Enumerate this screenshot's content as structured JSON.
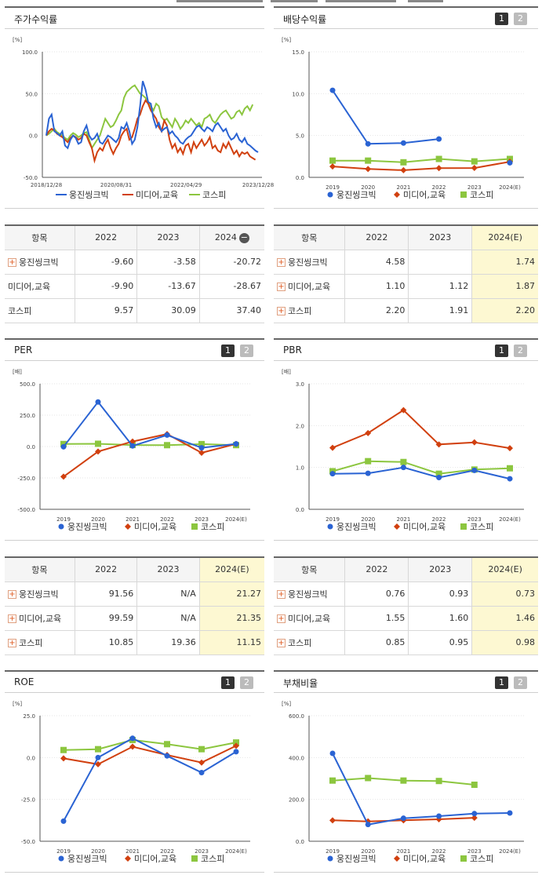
{
  "legend": [
    "웅진씽크빅",
    "미디어,교육",
    "코스피"
  ],
  "colors": {
    "s1": "#2a63d3",
    "s2": "#d1400f",
    "s3": "#8cc63f"
  },
  "panels": {
    "stock": {
      "title": "주가수익률",
      "unit": "[%]"
    },
    "dividend": {
      "title": "배당수익률",
      "unit": "[%]",
      "p1": "1",
      "p2": "2"
    },
    "per": {
      "title": "PER",
      "unit": "[배]",
      "p1": "1",
      "p2": "2"
    },
    "pbr": {
      "title": "PBR",
      "unit": "[배]",
      "p1": "1",
      "p2": "2"
    },
    "roe": {
      "title": "ROE",
      "unit": "[%]",
      "p1": "1",
      "p2": "2"
    },
    "debt": {
      "title": "부채비율",
      "unit": "[%]",
      "p1": "1",
      "p2": "2"
    }
  },
  "tables": {
    "stock": {
      "headers": [
        "항목",
        "2022",
        "2023",
        "2024"
      ],
      "minus": "−",
      "plus": "+",
      "rows": [
        [
          "웅진씽크빅",
          "-9.60",
          "-3.58",
          "-20.72"
        ],
        [
          "미디어,교육",
          "-9.90",
          "-13.67",
          "-28.67"
        ],
        [
          "코스피",
          "9.57",
          "30.09",
          "37.40"
        ]
      ]
    },
    "dividend": {
      "headers": [
        "항목",
        "2022",
        "2023",
        "2024(E)"
      ],
      "plus": "+",
      "rows": [
        [
          "웅진씽크빅",
          "4.58",
          "",
          "1.74"
        ],
        [
          "미디어,교육",
          "1.10",
          "1.12",
          "1.87"
        ],
        [
          "코스피",
          "2.20",
          "1.91",
          "2.20"
        ]
      ]
    },
    "per": {
      "headers": [
        "항목",
        "2022",
        "2023",
        "2024(E)"
      ],
      "plus": "+",
      "rows": [
        [
          "웅진씽크빅",
          "91.56",
          "N/A",
          "21.27"
        ],
        [
          "미디어,교육",
          "99.59",
          "N/A",
          "21.35"
        ],
        [
          "코스피",
          "10.85",
          "19.36",
          "11.15"
        ]
      ]
    },
    "pbr": {
      "headers": [
        "항목",
        "2022",
        "2023",
        "2024(E)"
      ],
      "plus": "+",
      "rows": [
        [
          "웅진씽크빅",
          "0.76",
          "0.93",
          "0.73"
        ],
        [
          "미디어,교육",
          "1.55",
          "1.60",
          "1.46"
        ],
        [
          "코스피",
          "0.85",
          "0.95",
          "0.98"
        ]
      ]
    }
  },
  "chart_data": [
    {
      "id": "stock",
      "type": "line",
      "ylabel": "[%]",
      "ylim": [
        -50,
        100
      ],
      "yticks": [
        "100.0",
        "50.0",
        "0.0",
        "-50.0"
      ],
      "xticks": [
        "2018/12/28",
        "2020/08/31",
        "2022/04/29",
        "2023/12/28"
      ],
      "series": [
        {
          "name": "웅진씽크빅",
          "values": [
            0,
            20,
            25,
            5,
            3,
            0,
            5,
            -12,
            -15,
            -5,
            0,
            -3,
            -10,
            -8,
            5,
            12,
            0,
            -5,
            -3,
            2,
            -8,
            -10,
            -5,
            0,
            -2,
            -5,
            -8,
            -3,
            10,
            8,
            15,
            5,
            -10,
            -5,
            10,
            35,
            65,
            55,
            40,
            38,
            20,
            10,
            15,
            5,
            8,
            10,
            2,
            5,
            0,
            -3,
            -8,
            -10,
            -5,
            -2,
            0,
            5,
            10,
            12,
            8,
            5,
            10,
            8,
            5,
            12,
            15,
            10,
            5,
            8,
            0,
            -5,
            -3,
            2,
            -5,
            -8,
            -3,
            -10,
            -12,
            -15,
            -18,
            -20
          ]
        },
        {
          "name": "미디어,교육",
          "values": [
            0,
            5,
            8,
            6,
            2,
            0,
            -2,
            -5,
            -8,
            -3,
            0,
            -2,
            -5,
            -3,
            2,
            0,
            -8,
            -15,
            -30,
            -20,
            -15,
            -18,
            -10,
            -5,
            -15,
            -22,
            -15,
            -10,
            0,
            5,
            8,
            -5,
            -2,
            8,
            20,
            25,
            35,
            42,
            38,
            30,
            25,
            20,
            10,
            5,
            18,
            12,
            -5,
            -15,
            -10,
            -20,
            -15,
            -22,
            -12,
            -10,
            -20,
            -8,
            -15,
            -10,
            -5,
            -12,
            -8,
            -2,
            -15,
            -12,
            -18,
            -20,
            -10,
            -15,
            -8,
            -15,
            -22,
            -18,
            -25,
            -20,
            -22,
            -20,
            -25,
            -27,
            -29
          ]
        },
        {
          "name": "코스피",
          "values": [
            0,
            2,
            5,
            8,
            4,
            2,
            0,
            -3,
            -5,
            0,
            3,
            1,
            -2,
            0,
            3,
            4,
            -5,
            -15,
            -10,
            -5,
            0,
            10,
            20,
            15,
            10,
            12,
            18,
            25,
            30,
            45,
            52,
            55,
            58,
            60,
            55,
            50,
            48,
            45,
            40,
            35,
            30,
            38,
            35,
            22,
            18,
            20,
            15,
            10,
            20,
            15,
            8,
            12,
            18,
            15,
            20,
            16,
            12,
            15,
            10,
            20,
            22,
            25,
            18,
            15,
            20,
            25,
            28,
            30,
            25,
            20,
            22,
            28,
            30,
            25,
            32,
            35,
            30,
            37
          ]
        }
      ]
    },
    {
      "id": "dividend",
      "type": "line",
      "ylabel": "[%]",
      "ylim": [
        0,
        15
      ],
      "yticks": [
        "15.0",
        "10.0",
        "5.0",
        "0.0"
      ],
      "categories": [
        "2019",
        "2020",
        "2021",
        "2022",
        "2023",
        "2024(E)"
      ],
      "series": [
        {
          "name": "웅진씽크빅",
          "values": [
            10.4,
            4.0,
            4.1,
            4.58,
            null,
            1.74
          ]
        },
        {
          "name": "미디어,교육",
          "values": [
            1.3,
            1.0,
            0.85,
            1.1,
            1.12,
            1.87
          ]
        },
        {
          "name": "코스피",
          "values": [
            2.0,
            2.0,
            1.8,
            2.2,
            1.91,
            2.2
          ]
        }
      ]
    },
    {
      "id": "per",
      "type": "line",
      "ylabel": "[배]",
      "ylim": [
        -500,
        500
      ],
      "yticks": [
        "500.0",
        "250.0",
        "0.0",
        "-250.0",
        "-500.0"
      ],
      "categories": [
        "2019",
        "2020",
        "2021",
        "2022",
        "2023",
        "2024(E)"
      ],
      "series": [
        {
          "name": "웅진씽크빅",
          "values": [
            -2,
            355,
            5,
            91.56,
            -10,
            21.27
          ]
        },
        {
          "name": "미디어,교육",
          "values": [
            -240,
            -40,
            40,
            99.59,
            -50,
            21.35
          ]
        },
        {
          "name": "코스피",
          "values": [
            20,
            22,
            12,
            10.85,
            19.36,
            11.15
          ]
        }
      ]
    },
    {
      "id": "pbr",
      "type": "line",
      "ylabel": "[배]",
      "ylim": [
        0,
        3
      ],
      "yticks": [
        "3.0",
        "2.0",
        "1.0",
        "0.0"
      ],
      "categories": [
        "2019",
        "2020",
        "2021",
        "2022",
        "2023",
        "2024(E)"
      ],
      "series": [
        {
          "name": "웅진씽크빅",
          "values": [
            0.85,
            0.86,
            1.0,
            0.76,
            0.93,
            0.73
          ]
        },
        {
          "name": "미디어,교육",
          "values": [
            1.47,
            1.82,
            2.37,
            1.55,
            1.6,
            1.46
          ]
        },
        {
          "name": "코스피",
          "values": [
            0.91,
            1.15,
            1.13,
            0.85,
            0.95,
            0.98
          ]
        }
      ]
    },
    {
      "id": "roe",
      "type": "line",
      "ylabel": "[%]",
      "ylim": [
        -50,
        25
      ],
      "yticks": [
        "25.0",
        "0.0",
        "-25.0",
        "-50.0"
      ],
      "categories": [
        "2019",
        "2020",
        "2021",
        "2022",
        "2023",
        "2024(E)"
      ],
      "series": [
        {
          "name": "웅진씽크빅",
          "values": [
            -38,
            0,
            11.5,
            1,
            -9,
            3.5
          ]
        },
        {
          "name": "미디어,교육",
          "values": [
            -0.5,
            -4,
            6.5,
            1.5,
            -3,
            7
          ]
        },
        {
          "name": "코스피",
          "values": [
            4.5,
            5,
            10.5,
            8,
            5,
            9
          ]
        }
      ]
    },
    {
      "id": "debt",
      "type": "line",
      "ylabel": "[%]",
      "ylim": [
        0,
        600
      ],
      "yticks": [
        "600.0",
        "400.0",
        "200.0",
        "0.0"
      ],
      "categories": [
        "2019",
        "2020",
        "2021",
        "2022",
        "2023",
        "2024(E)"
      ],
      "series": [
        {
          "name": "웅진씽크빅",
          "values": [
            420,
            80,
            110,
            120,
            132,
            135
          ]
        },
        {
          "name": "미디어,교육",
          "values": [
            100,
            95,
            100,
            105,
            112,
            null
          ]
        },
        {
          "name": "코스피",
          "values": [
            290,
            302,
            290,
            288,
            270,
            null
          ]
        }
      ]
    }
  ]
}
